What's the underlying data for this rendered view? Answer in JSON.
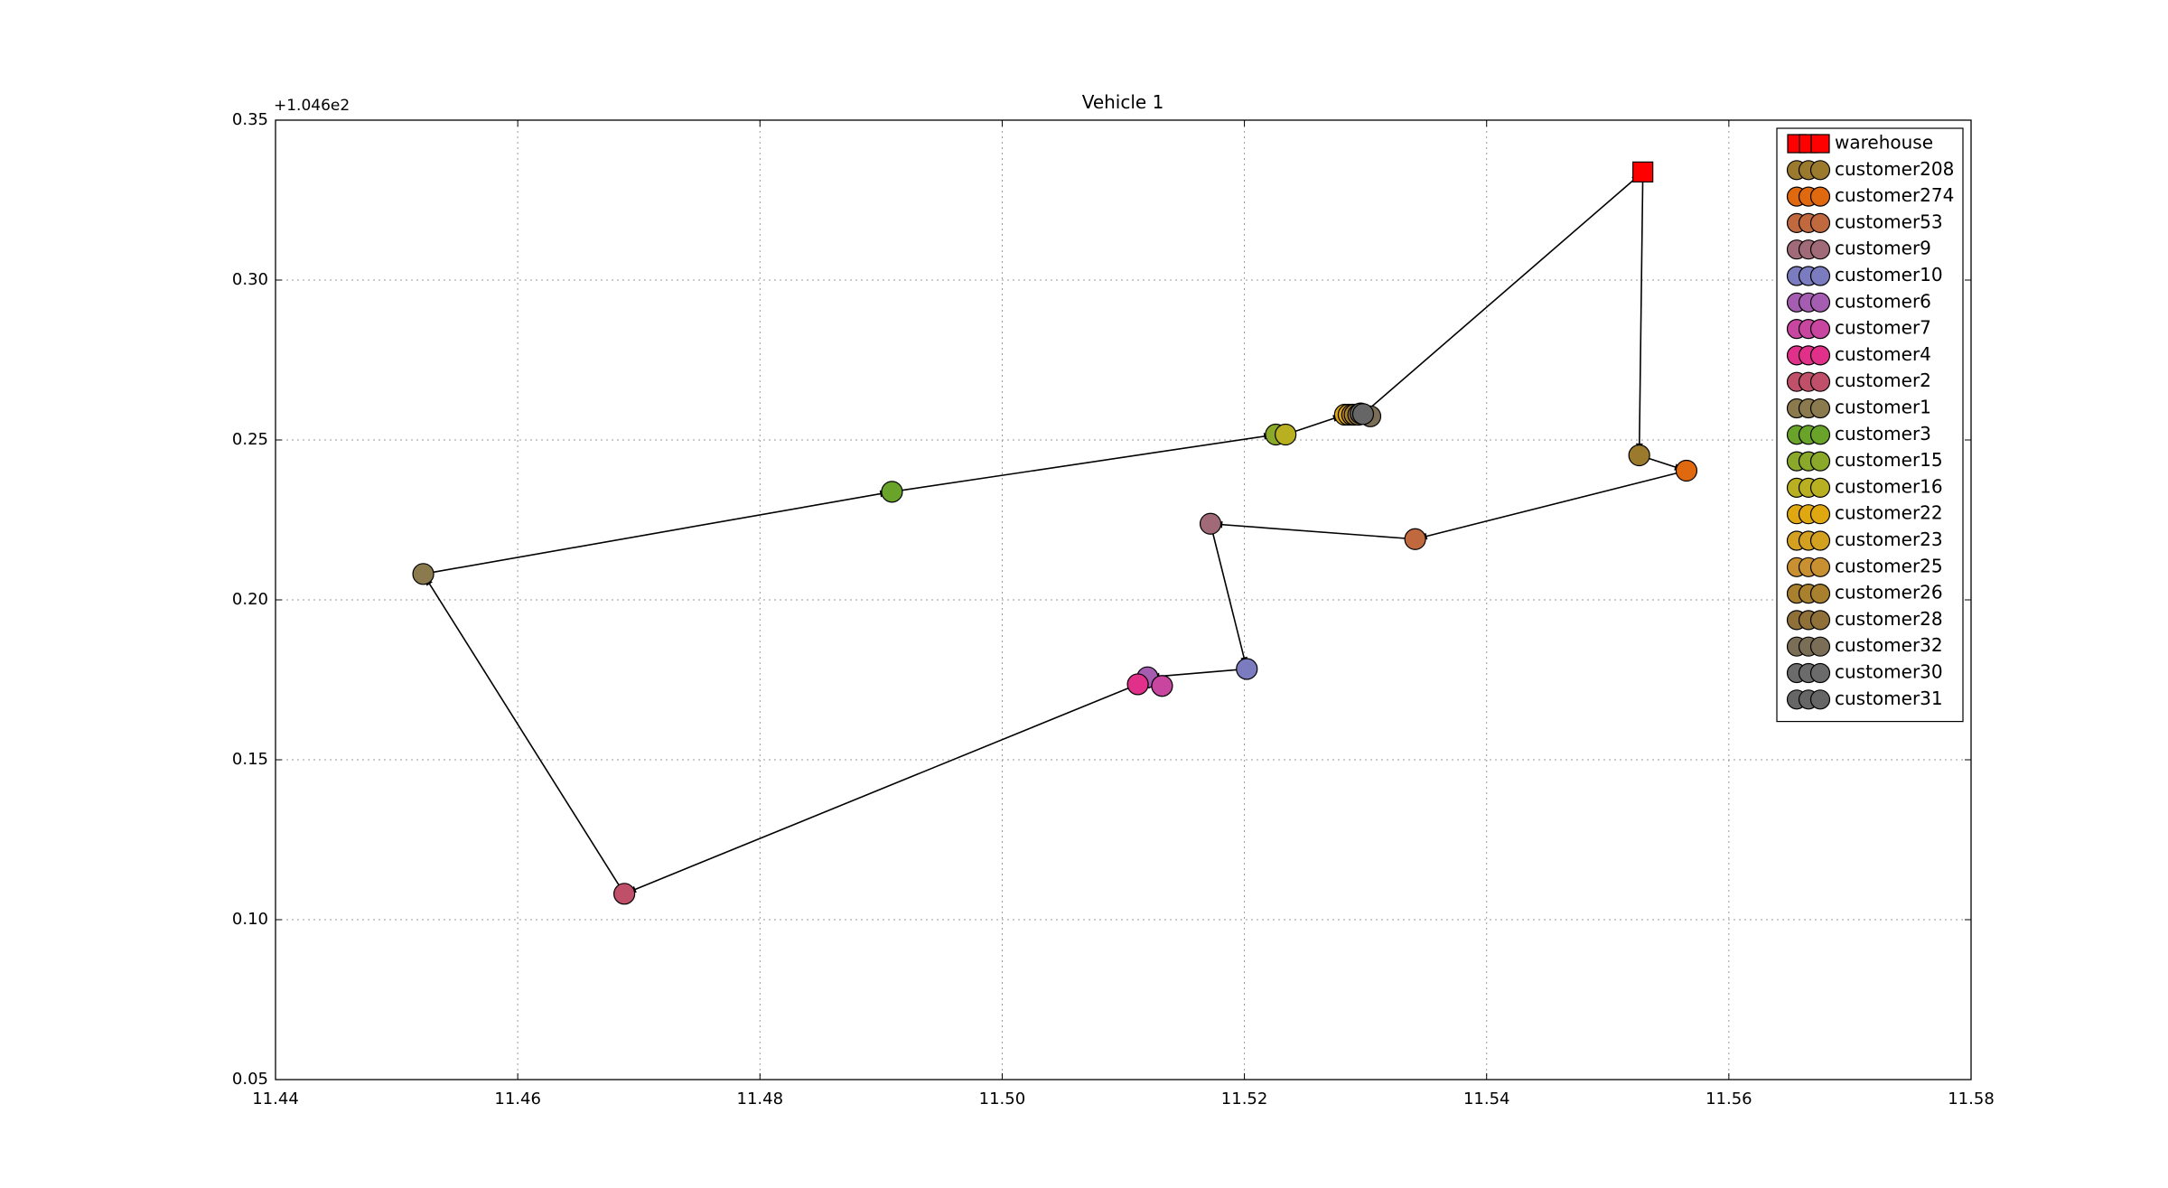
{
  "chart_data": {
    "type": "scatter",
    "title": "Vehicle 1",
    "y_offset_label": "+1.046e2",
    "xlim": [
      11.44,
      11.58
    ],
    "xticks": [
      11.44,
      11.46,
      11.48,
      {
        "value": 11.5,
        "label": "11.50"
      },
      11.52,
      11.54,
      11.56,
      11.58
    ],
    "ylim": [
      0.05,
      0.35
    ],
    "yticks": [
      0.05,
      {
        "value": 0.1,
        "label": "0.10"
      },
      0.15,
      {
        "value": 0.2,
        "label": "0.20"
      },
      0.25,
      {
        "value": 0.3,
        "label": "0.30"
      },
      0.35
    ],
    "grid": true,
    "route_closed": true,
    "legend": "upper right",
    "series": [
      {
        "name": "warehouse",
        "marker": "square",
        "color": "#ff0000",
        "x": [
          11.5529
        ],
        "values": [
          0.3338
        ]
      },
      {
        "name": "customer208",
        "marker": "circle",
        "color": "#9b7a2e",
        "x": [
          11.5526
        ],
        "values": [
          0.2452
        ]
      },
      {
        "name": "customer274",
        "marker": "circle",
        "color": "#e0680f",
        "x": [
          11.5565
        ],
        "values": [
          0.2404
        ]
      },
      {
        "name": "customer53",
        "marker": "circle",
        "color": "#c0683e",
        "x": [
          11.5341
        ],
        "values": [
          0.219
        ]
      },
      {
        "name": "customer9",
        "marker": "circle",
        "color": "#a06a78",
        "x": [
          11.5172
        ],
        "values": [
          0.2238
        ]
      },
      {
        "name": "customer10",
        "marker": "circle",
        "color": "#7b7bbf",
        "x": [
          11.5202
        ],
        "values": [
          0.1784
        ]
      },
      {
        "name": "customer6",
        "marker": "circle",
        "color": "#a45db0",
        "x": [
          11.512
        ],
        "values": [
          0.1758
        ]
      },
      {
        "name": "customer7",
        "marker": "circle",
        "color": "#c946a0",
        "x": [
          11.5132
        ],
        "values": [
          0.1731
        ]
      },
      {
        "name": "customer4",
        "marker": "circle",
        "color": "#e0308a",
        "x": [
          11.5112
        ],
        "values": [
          0.1736
        ]
      },
      {
        "name": "customer2",
        "marker": "circle",
        "color": "#c0506a",
        "x": [
          11.4688
        ],
        "values": [
          0.1081
        ]
      },
      {
        "name": "customer1",
        "marker": "circle",
        "color": "#8a7a4e",
        "x": [
          11.4522
        ],
        "values": [
          0.2081
        ]
      },
      {
        "name": "customer3",
        "marker": "circle",
        "color": "#6aa32a",
        "x": [
          11.4909
        ],
        "values": [
          0.2338
        ]
      },
      {
        "name": "customer15",
        "marker": "circle",
        "color": "#8aa82a",
        "x": [
          11.5226
        ],
        "values": [
          0.2517
        ]
      },
      {
        "name": "customer16",
        "marker": "circle",
        "color": "#b8b020",
        "x": [
          11.5234
        ],
        "values": [
          0.2517
        ]
      },
      {
        "name": "customer22",
        "marker": "circle",
        "color": "#e0a810",
        "x": [
          11.5283
        ],
        "values": [
          0.2579
        ]
      },
      {
        "name": "customer23",
        "marker": "circle",
        "color": "#d4a020",
        "x": [
          11.5286
        ],
        "values": [
          0.2579
        ]
      },
      {
        "name": "customer25",
        "marker": "circle",
        "color": "#c89030",
        "x": [
          11.5289
        ],
        "values": [
          0.2579
        ]
      },
      {
        "name": "customer26",
        "marker": "circle",
        "color": "#a8802e",
        "x": [
          11.5291
        ],
        "values": [
          0.2579
        ]
      },
      {
        "name": "customer28",
        "marker": "circle",
        "color": "#8e7038",
        "x": [
          11.5294
        ],
        "values": [
          0.2579
        ]
      },
      {
        "name": "customer32",
        "marker": "circle",
        "color": "#7a6e56",
        "x": [
          11.5304
        ],
        "values": [
          0.2574
        ]
      },
      {
        "name": "customer30",
        "marker": "circle",
        "color": "#6b6b6b",
        "x": [
          11.5296
        ],
        "values": [
          0.2583
        ]
      },
      {
        "name": "customer31",
        "marker": "circle",
        "color": "#666666",
        "x": [
          11.5298
        ],
        "values": [
          0.2581
        ]
      }
    ]
  }
}
